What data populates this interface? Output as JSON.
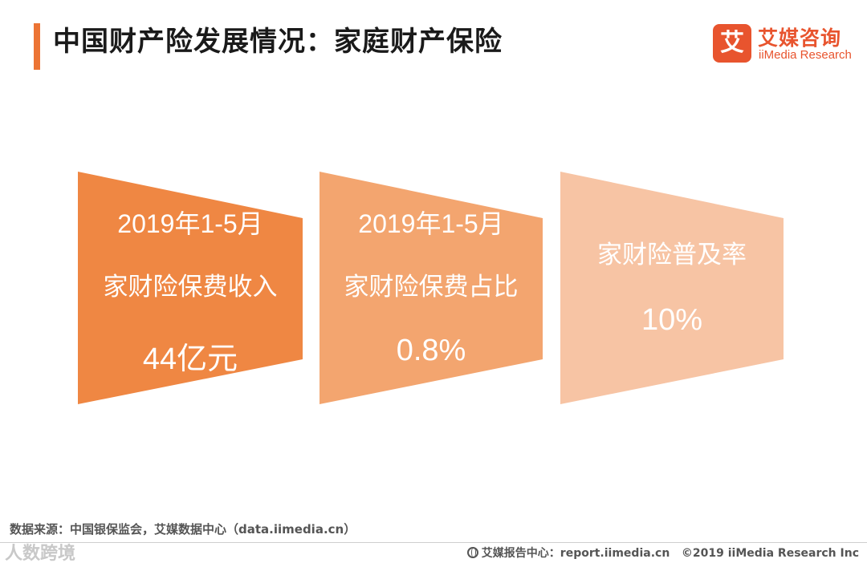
{
  "header": {
    "title": "中国财产险发展情况：家庭财产保险",
    "brand_badge": "艾",
    "brand_cn": "艾媒咨询",
    "brand_en": "iiMedia Research"
  },
  "cards": [
    {
      "line1": "2019年1-5月",
      "line2": "家财险保费收入",
      "value": "44亿元",
      "color": "#ef8743"
    },
    {
      "line1": "2019年1-5月",
      "line2": "家财险保费占比",
      "value": "0.8%",
      "color": "#f3a56f"
    },
    {
      "label": "家财险普及率",
      "value": "10%",
      "color": "#f7c4a4"
    }
  ],
  "footer": {
    "source": "数据来源：中国银保监会，艾媒数据中心（data.iimedia.cn）",
    "watermark": "人数跨境",
    "report_center": "艾媒报告中心：report.iimedia.cn",
    "copyright": "©2019  iiMedia Research  Inc"
  }
}
